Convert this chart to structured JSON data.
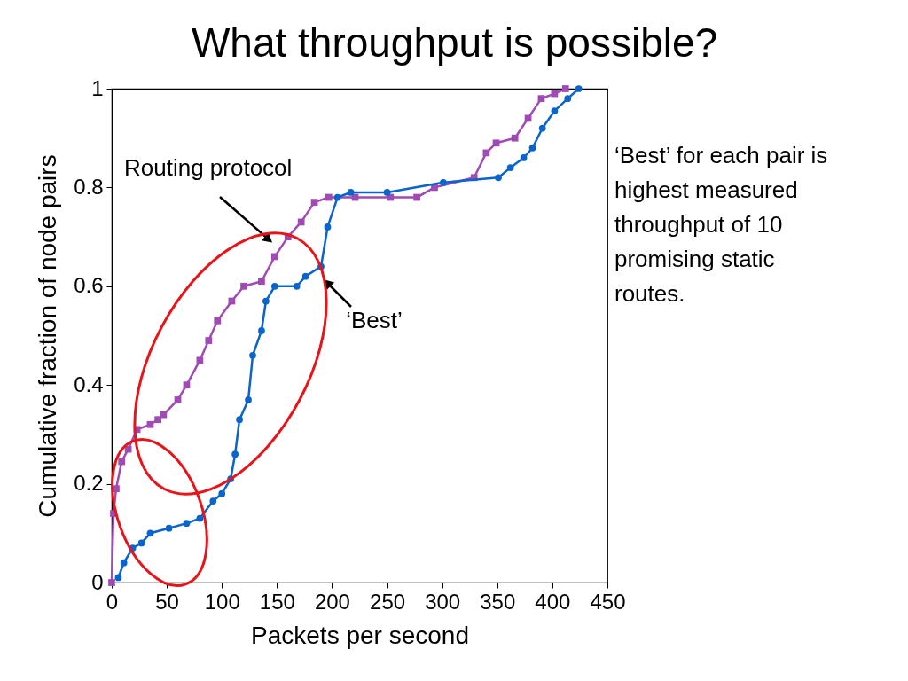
{
  "chart_data": {
    "type": "line",
    "title": "What throughput is possible?",
    "xlabel": "Packets per second",
    "ylabel": "Cumulative fraction of node pairs",
    "xlim": [
      0,
      450
    ],
    "xticks": [
      0,
      50,
      100,
      150,
      200,
      250,
      300,
      350,
      400,
      450
    ],
    "ylim": [
      0,
      1
    ],
    "yticks": [
      0,
      0.2,
      0.4,
      0.6,
      0.8,
      1
    ],
    "grid": false,
    "line_style": "solid",
    "series": [
      {
        "name": "Routing protocol",
        "color": "#a04ab4",
        "marker": "square",
        "x": [
          0,
          1.6,
          4,
          9,
          15,
          23,
          35,
          42,
          47,
          60,
          68,
          80,
          88,
          96,
          109,
          120,
          136,
          148,
          160,
          172,
          184,
          197,
          221,
          253,
          277,
          293,
          329,
          340,
          349,
          366,
          378,
          390,
          402,
          412
        ],
        "values": [
          0,
          0.14,
          0.19,
          0.245,
          0.27,
          0.31,
          0.32,
          0.33,
          0.34,
          0.37,
          0.4,
          0.45,
          0.49,
          0.53,
          0.57,
          0.6,
          0.61,
          0.66,
          0.7,
          0.73,
          0.77,
          0.78,
          0.78,
          0.78,
          0.78,
          0.8,
          0.82,
          0.87,
          0.89,
          0.9,
          0.94,
          0.98,
          0.99,
          1
        ]
      },
      {
        "name": "‘Best’",
        "color": "#0a64cc",
        "marker": "circle",
        "x": [
          6,
          11,
          19,
          27,
          35,
          52,
          68,
          80,
          92,
          100,
          108,
          112,
          116,
          124,
          128,
          136,
          140,
          148,
          168,
          176,
          190,
          196,
          205,
          217,
          250,
          301,
          351,
          362,
          374,
          382,
          391,
          402,
          414,
          424
        ],
        "values": [
          0.01,
          0.04,
          0.07,
          0.08,
          0.1,
          0.11,
          0.12,
          0.13,
          0.165,
          0.18,
          0.21,
          0.26,
          0.33,
          0.37,
          0.46,
          0.51,
          0.57,
          0.6,
          0.6,
          0.62,
          0.64,
          0.72,
          0.78,
          0.79,
          0.79,
          0.81,
          0.82,
          0.84,
          0.86,
          0.88,
          0.92,
          0.955,
          0.98,
          1
        ]
      }
    ],
    "annotations": [
      "‘Best’ for each pair is highest measured throughput of 10 promising static routes."
    ]
  }
}
